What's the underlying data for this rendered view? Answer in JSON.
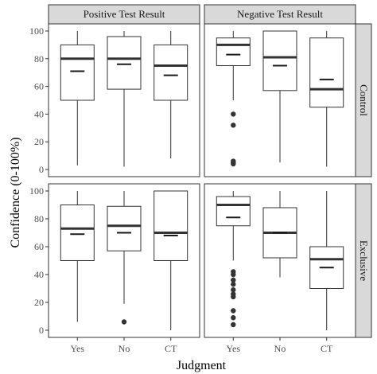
{
  "chart_data": {
    "type": "boxplot",
    "xlabel": "Judgment",
    "ylabel": "Confidence (0-100%)",
    "ylim": [
      0,
      100
    ],
    "yticks": [
      0,
      20,
      40,
      60,
      80,
      100
    ],
    "categories": [
      "Yes",
      "No",
      "CT"
    ],
    "col_facets": [
      "Positive Test Result",
      "Negative Test Result"
    ],
    "row_facets": [
      "Control",
      "Exclusive"
    ],
    "grid": false,
    "panels": [
      {
        "col": "Positive Test Result",
        "row": "Control",
        "boxes": [
          {
            "category": "Yes",
            "low": 3,
            "q1": 50,
            "median": 80,
            "q3": 90,
            "high": 100,
            "mean": 71,
            "outliers": []
          },
          {
            "category": "No",
            "low": 2,
            "q1": 58,
            "median": 80,
            "q3": 96,
            "high": 100,
            "mean": 76,
            "outliers": []
          },
          {
            "category": "CT",
            "low": 8,
            "q1": 50,
            "median": 75,
            "q3": 90,
            "high": 100,
            "mean": 68,
            "outliers": []
          }
        ]
      },
      {
        "col": "Negative Test Result",
        "row": "Control",
        "boxes": [
          {
            "category": "Yes",
            "low": 50,
            "q1": 75,
            "median": 90,
            "q3": 95,
            "high": 100,
            "mean": 83,
            "outliers": [
              40,
              32,
              6,
              5,
              4
            ]
          },
          {
            "category": "No",
            "low": 5,
            "q1": 57,
            "median": 81,
            "q3": 100,
            "high": 100,
            "mean": 75,
            "outliers": []
          },
          {
            "category": "CT",
            "low": 2,
            "q1": 45,
            "median": 58,
            "q3": 95,
            "high": 100,
            "mean": 65,
            "outliers": []
          }
        ]
      },
      {
        "col": "Positive Test Result",
        "row": "Exclusive",
        "boxes": [
          {
            "category": "Yes",
            "low": 6,
            "q1": 50,
            "median": 73,
            "q3": 90,
            "high": 100,
            "mean": 69,
            "outliers": []
          },
          {
            "category": "No",
            "low": 19,
            "q1": 57,
            "median": 75,
            "q3": 89,
            "high": 100,
            "mean": 70,
            "outliers": [
              6
            ]
          },
          {
            "category": "CT",
            "low": 0,
            "q1": 50,
            "median": 70,
            "q3": 100,
            "high": 100,
            "mean": 68,
            "outliers": []
          }
        ]
      },
      {
        "col": "Negative Test Result",
        "row": "Exclusive",
        "boxes": [
          {
            "category": "Yes",
            "low": 50,
            "q1": 75,
            "median": 90,
            "q3": 96,
            "high": 100,
            "mean": 81,
            "outliers": [
              42,
              40,
              36,
              33,
              29,
              26,
              24,
              14,
              9,
              4
            ]
          },
          {
            "category": "No",
            "low": 38,
            "q1": 52,
            "median": 70,
            "q3": 88,
            "high": 100,
            "mean": 70,
            "outliers": []
          },
          {
            "category": "CT",
            "low": 0,
            "q1": 30,
            "median": 51,
            "q3": 60,
            "high": 100,
            "mean": 45,
            "outliers": []
          }
        ]
      }
    ]
  }
}
